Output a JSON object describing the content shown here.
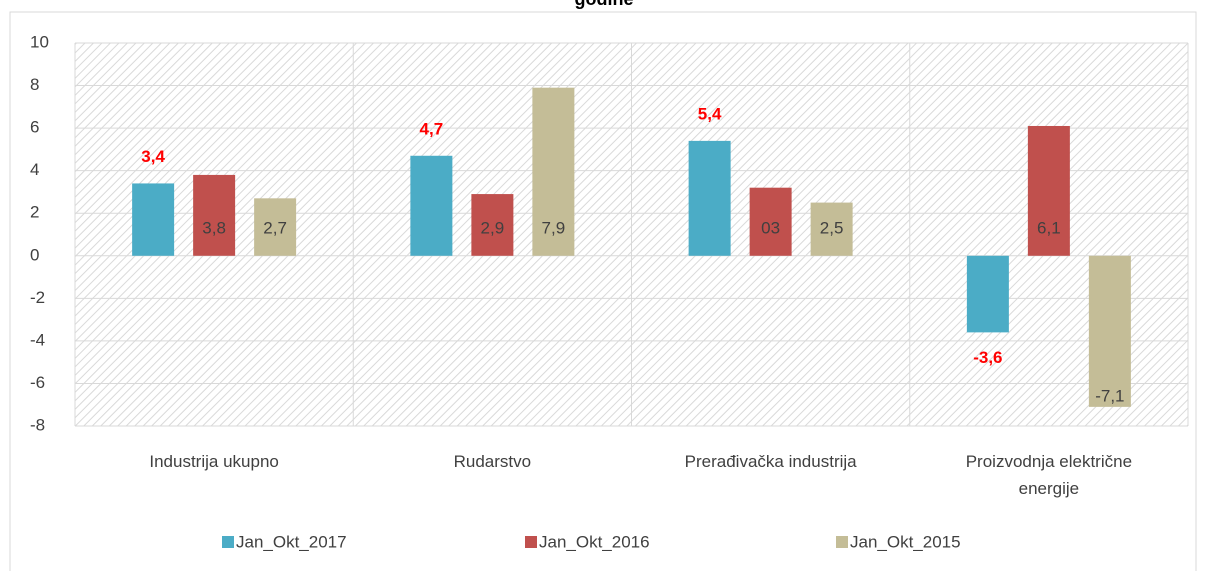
{
  "chart_data": {
    "type": "bar",
    "title": "godine",
    "categories": [
      "Industrija ukupno",
      "Rudarstvo",
      "Prerađivačka industrija",
      "Proizvodnja električne energije"
    ],
    "series": [
      {
        "name": "Jan_Okt_2017",
        "color": "#4bacc6",
        "values": [
          3.4,
          4.7,
          5.4,
          -3.6
        ],
        "value_labels": [
          "3,4",
          "4,7",
          "5,4",
          "-3,6"
        ]
      },
      {
        "name": "Jan_Okt_2016",
        "color": "#c0504d",
        "values": [
          3.8,
          2.9,
          3.2,
          6.1
        ],
        "value_labels": [
          "3,8",
          "2,9",
          "03",
          "6,1"
        ]
      },
      {
        "name": "Jan_Okt_2015",
        "color": "#c4bd97",
        "values": [
          2.7,
          7.9,
          2.5,
          -7.1
        ],
        "value_labels": [
          "2,7",
          "7,9",
          "2,5",
          "-7,1"
        ]
      }
    ],
    "ylim": [
      -8,
      10
    ],
    "yticks": [
      -8,
      -6,
      -4,
      -2,
      0,
      2,
      4,
      6,
      8,
      10
    ],
    "grid": true,
    "legend": "bottom"
  }
}
